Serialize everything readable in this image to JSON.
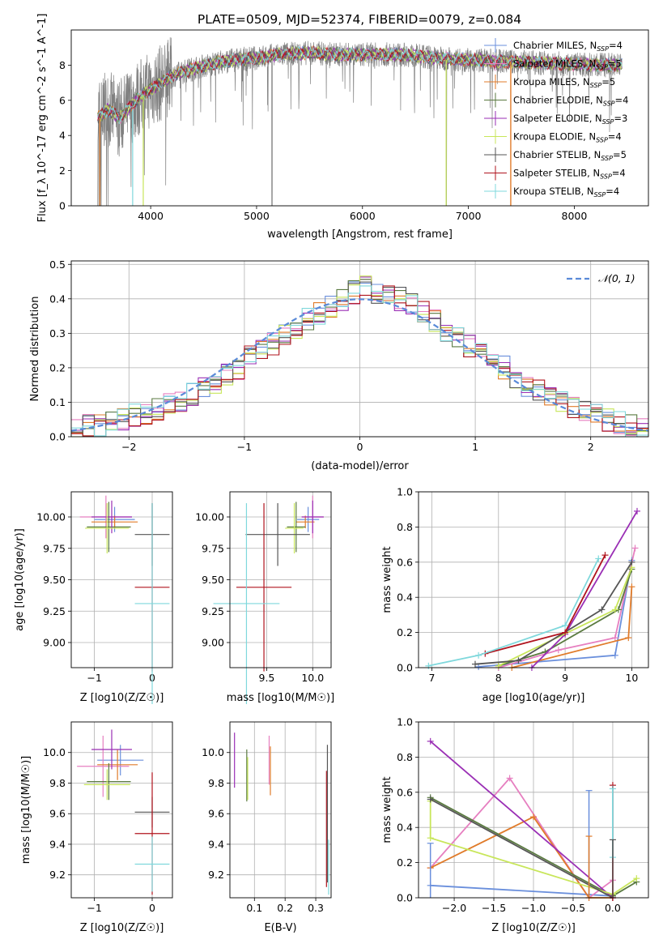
{
  "title": "PLATE=0509, MJD=52374, FIBERID=0079, z=0.084",
  "colors": {
    "chabrier_miles": "#6a8fdc",
    "salpeter_miles": "#e67fc0",
    "kroupa_miles": "#e07b2a",
    "chabrier_elodie": "#5a7a40",
    "salpeter_elodie": "#9a2fb5",
    "kroupa_elodie": "#c8e65a",
    "chabrier_stelib": "#555555",
    "salpeter_stelib": "#b0141e",
    "kroupa_stelib": "#7fd8dc",
    "data": "#808080",
    "normal": "#5a8ad8"
  },
  "chart_data": [
    {
      "id": "spectrum",
      "type": "line",
      "xlabel": "wavelength [Angstrom, rest frame]",
      "ylabel": "Flux [f_λ 10^-17 erg cm^-2 s^-1 A^-1]",
      "xlim": [
        3250,
        8700
      ],
      "ylim": [
        0,
        10
      ],
      "xticks": [
        4000,
        5000,
        6000,
        7000,
        8000
      ],
      "yticks": [
        0,
        2,
        4,
        6,
        8
      ],
      "grid": false,
      "legend_position": "right",
      "legend": [
        {
          "label": "Chabrier MILES, N_SSP=4",
          "color": "#6a8fdc"
        },
        {
          "label": "Salpeter MILES, N_SSP=5",
          "color": "#e67fc0"
        },
        {
          "label": "Kroupa MILES, N_SSP=5",
          "color": "#e07b2a"
        },
        {
          "label": "Chabrier ELODIE, N_SSP=4",
          "color": "#5a7a40"
        },
        {
          "label": "Salpeter ELODIE, N_SSP=3",
          "color": "#9a2fb5"
        },
        {
          "label": "Kroupa ELODIE, N_SSP=4",
          "color": "#c8e65a"
        },
        {
          "label": "Chabrier STELIB, N_SSP=5",
          "color": "#555555"
        },
        {
          "label": "Salpeter STELIB, N_SSP=4",
          "color": "#b0141e"
        },
        {
          "label": "Kroupa STELIB, N_SSP=4",
          "color": "#7fd8dc"
        }
      ],
      "continuum": {
        "x": [
          3500,
          3600,
          3700,
          3800,
          3900,
          4000,
          4100,
          4200,
          4400,
          4600,
          4800,
          5000,
          5200,
          5500,
          5800,
          6100,
          6400,
          6700,
          7000,
          7400,
          7800,
          8200,
          8450
        ],
        "y": [
          5.0,
          5.5,
          5.0,
          5.6,
          6.2,
          6.6,
          7.0,
          7.4,
          7.8,
          8.1,
          8.3,
          8.4,
          8.6,
          8.7,
          8.6,
          8.6,
          8.6,
          8.4,
          8.3,
          8.2,
          8.1,
          8.0,
          8.0
        ]
      }
    },
    {
      "id": "residuals",
      "type": "histogram",
      "xlabel": "(data-model)/error",
      "ylabel": "Normed distribution",
      "xlim": [
        -2.5,
        2.5
      ],
      "ylim": [
        0,
        0.51
      ],
      "xticks": [
        -2,
        -1,
        0,
        1,
        2
      ],
      "yticks": [
        0.0,
        0.1,
        0.2,
        0.3,
        0.4,
        0.5
      ],
      "grid": true,
      "legend_position": "top-right",
      "normal_label": "𝒩(0, 1)",
      "bin_edges_start": -2.5,
      "bin_width": 0.1,
      "base_series": [
        0.02,
        0.03,
        0.03,
        0.05,
        0.05,
        0.06,
        0.07,
        0.08,
        0.09,
        0.1,
        0.12,
        0.14,
        0.16,
        0.18,
        0.2,
        0.23,
        0.25,
        0.27,
        0.29,
        0.32,
        0.34,
        0.36,
        0.38,
        0.4,
        0.42,
        0.44,
        0.42,
        0.41,
        0.4,
        0.38,
        0.36,
        0.34,
        0.31,
        0.29,
        0.26,
        0.24,
        0.22,
        0.2,
        0.17,
        0.15,
        0.13,
        0.12,
        0.1,
        0.08,
        0.07,
        0.06,
        0.05,
        0.04,
        0.03,
        0.02
      ]
    },
    {
      "id": "age_vs_Z",
      "type": "errorbar",
      "xlabel": "Z [log10(Z/Z☉)]",
      "ylabel": "age [log10(age/yr)]",
      "xlim": [
        -1.4,
        0.35
      ],
      "ylim": [
        8.8,
        10.2
      ],
      "xticks": [
        -1,
        0
      ],
      "yticks": [
        9.0,
        9.25,
        9.5,
        9.75,
        10.0
      ],
      "grid": true,
      "points": [
        {
          "x": -0.65,
          "y": 9.98,
          "xerr": 0.35,
          "yerr": 0.1,
          "color": "#6a8fdc"
        },
        {
          "x": -0.8,
          "y": 10.0,
          "xerr": 0.45,
          "yerr": 0.17,
          "color": "#e67fc0"
        },
        {
          "x": -0.65,
          "y": 9.96,
          "xerr": 0.4,
          "yerr": 0.05,
          "color": "#e07b2a"
        },
        {
          "x": -0.75,
          "y": 9.92,
          "xerr": 0.38,
          "yerr": 0.2,
          "color": "#5a7a40"
        },
        {
          "x": -0.7,
          "y": 10.0,
          "xerr": 0.35,
          "yerr": 0.13,
          "color": "#9a2fb5"
        },
        {
          "x": -0.78,
          "y": 9.91,
          "xerr": 0.38,
          "yerr": 0.2,
          "color": "#c8e65a"
        },
        {
          "x": 0.0,
          "y": 9.86,
          "xerr": 0.3,
          "yerr": 0.25,
          "color": "#555555"
        },
        {
          "x": 0.0,
          "y": 9.44,
          "xerr": 0.3,
          "yerr": 0.67,
          "color": "#b0141e"
        },
        {
          "x": 0.0,
          "y": 9.31,
          "xerr": 0.3,
          "yerr": 0.8,
          "color": "#7fd8dc"
        }
      ]
    },
    {
      "id": "age_vs_mass",
      "type": "errorbar",
      "xlabel": "mass [log10(M/M☉)]",
      "ylabel": "",
      "xlim": [
        9.1,
        10.2
      ],
      "ylim": [
        8.8,
        10.2
      ],
      "xticks": [
        9.5,
        10.0
      ],
      "yticks": [
        9.0,
        9.25,
        9.5,
        9.75,
        10.0
      ],
      "grid": true,
      "points": [
        {
          "x": 9.95,
          "y": 9.98,
          "xerr": 0.12,
          "yerr": 0.1,
          "color": "#6a8fdc"
        },
        {
          "x": 10.0,
          "y": 10.0,
          "xerr": 0.12,
          "yerr": 0.17,
          "color": "#e67fc0"
        },
        {
          "x": 9.92,
          "y": 9.96,
          "xerr": 0.1,
          "yerr": 0.05,
          "color": "#e07b2a"
        },
        {
          "x": 9.82,
          "y": 9.92,
          "xerr": 0.1,
          "yerr": 0.2,
          "color": "#5a7a40"
        },
        {
          "x": 10.0,
          "y": 10.0,
          "xerr": 0.12,
          "yerr": 0.13,
          "color": "#9a2fb5"
        },
        {
          "x": 9.8,
          "y": 9.91,
          "xerr": 0.1,
          "yerr": 0.2,
          "color": "#c8e65a"
        },
        {
          "x": 9.62,
          "y": 9.86,
          "xerr": 0.35,
          "yerr": 0.25,
          "color": "#555555"
        },
        {
          "x": 9.47,
          "y": 9.44,
          "xerr": 0.3,
          "yerr": 0.67,
          "color": "#b0141e"
        },
        {
          "x": 9.28,
          "y": 9.31,
          "xerr": 0.36,
          "yerr": 0.8,
          "color": "#7fd8dc"
        }
      ]
    },
    {
      "id": "weight_vs_age",
      "type": "line",
      "xlabel": "age [log10(age/yr)]",
      "ylabel": "mass weight",
      "xlim": [
        6.8,
        10.25
      ],
      "ylim": [
        0,
        1.0
      ],
      "xticks": [
        7,
        8,
        9,
        10
      ],
      "yticks": [
        0.0,
        0.2,
        0.4,
        0.6,
        0.8,
        1.0
      ],
      "grid": true,
      "series": [
        {
          "color": "#6a8fdc",
          "x": [
            7.7,
            9.75,
            10.0
          ],
          "y": [
            0.005,
            0.07,
            0.61
          ]
        },
        {
          "color": "#e67fc0",
          "x": [
            8.0,
            8.9,
            9.75,
            10.05
          ],
          "y": [
            0.0,
            0.1,
            0.17,
            0.68
          ]
        },
        {
          "color": "#e07b2a",
          "x": [
            8.2,
            9.95,
            10.0
          ],
          "y": [
            0.0,
            0.17,
            0.46
          ]
        },
        {
          "color": "#5a7a40",
          "x": [
            8.0,
            8.7,
            9.8,
            10.0
          ],
          "y": [
            0.01,
            0.09,
            0.33,
            0.56
          ]
        },
        {
          "color": "#9a2fb5",
          "x": [
            8.5,
            9.0,
            10.08
          ],
          "y": [
            0.0,
            0.19,
            0.89
          ]
        },
        {
          "color": "#c8e65a",
          "x": [
            8.0,
            9.75,
            10.0
          ],
          "y": [
            0.01,
            0.33,
            0.57
          ]
        },
        {
          "color": "#555555",
          "x": [
            7.65,
            8.3,
            9.55,
            10.0
          ],
          "y": [
            0.02,
            0.04,
            0.33,
            0.6
          ]
        },
        {
          "color": "#b0141e",
          "x": [
            7.8,
            9.0,
            9.6
          ],
          "y": [
            0.08,
            0.2,
            0.64
          ]
        },
        {
          "color": "#7fd8dc",
          "x": [
            6.95,
            7.7,
            9.0,
            9.5
          ],
          "y": [
            0.01,
            0.07,
            0.24,
            0.62
          ]
        }
      ]
    },
    {
      "id": "mass_vs_Z",
      "type": "errorbar",
      "xlabel": "Z [log10(Z/Z☉)]",
      "ylabel": "mass [log10(M/M☉)]",
      "xlim": [
        -1.4,
        0.35
      ],
      "ylim": [
        9.05,
        10.2
      ],
      "xticks": [
        -1,
        0
      ],
      "yticks": [
        9.2,
        9.4,
        9.6,
        9.8,
        10.0
      ],
      "grid": true,
      "points": [
        {
          "x": -0.55,
          "y": 9.95,
          "xerr": 0.4,
          "yerr": 0.1,
          "color": "#6a8fdc"
        },
        {
          "x": -0.85,
          "y": 9.91,
          "xerr": 0.45,
          "yerr": 0.2,
          "color": "#e67fc0"
        },
        {
          "x": -0.6,
          "y": 9.92,
          "xerr": 0.35,
          "yerr": 0.1,
          "color": "#e07b2a"
        },
        {
          "x": -0.75,
          "y": 9.81,
          "xerr": 0.38,
          "yerr": 0.12,
          "color": "#5a7a40"
        },
        {
          "x": -0.7,
          "y": 10.02,
          "xerr": 0.35,
          "yerr": 0.13,
          "color": "#9a2fb5"
        },
        {
          "x": -0.78,
          "y": 9.79,
          "xerr": 0.4,
          "yerr": 0.1,
          "color": "#c8e65a"
        },
        {
          "x": 0.0,
          "y": 9.61,
          "xerr": 0.3,
          "yerr": 0.1,
          "color": "#555555"
        },
        {
          "x": 0.0,
          "y": 9.47,
          "xerr": 0.3,
          "yerr": 0.4,
          "color": "#b0141e"
        },
        {
          "x": 0.0,
          "y": 9.27,
          "xerr": 0.3,
          "yerr": 0.18,
          "color": "#7fd8dc"
        }
      ]
    },
    {
      "id": "mass_vs_ebv",
      "type": "errorbar",
      "xlabel": "E(B-V)",
      "ylabel": "",
      "xlim": [
        0.02,
        0.35
      ],
      "ylim": [
        9.05,
        10.2
      ],
      "xticks": [
        0.1,
        0.2,
        0.3
      ],
      "yticks": [
        9.2,
        9.4,
        9.6,
        9.8,
        10.0
      ],
      "grid": true,
      "points": [
        {
          "x": 0.035,
          "y": 9.95,
          "xerr": 0.0,
          "yerr": 0.18,
          "color": "#9a2fb5"
        },
        {
          "x": 0.075,
          "y": 9.85,
          "xerr": 0.0,
          "yerr": 0.17,
          "color": "#5a7a40"
        },
        {
          "x": 0.078,
          "y": 9.83,
          "xerr": 0.0,
          "yerr": 0.14,
          "color": "#c8e65a"
        },
        {
          "x": 0.148,
          "y": 9.95,
          "xerr": 0.0,
          "yerr": 0.16,
          "color": "#e67fc0"
        },
        {
          "x": 0.152,
          "y": 9.88,
          "xerr": 0.0,
          "yerr": 0.16,
          "color": "#e07b2a"
        },
        {
          "x": 0.335,
          "y": 9.5,
          "xerr": 0.0,
          "yerr": 0.38,
          "color": "#b0141e"
        },
        {
          "x": 0.338,
          "y": 9.6,
          "xerr": 0.0,
          "yerr": 0.45,
          "color": "#555555"
        },
        {
          "x": 0.342,
          "y": 9.25,
          "xerr": 0.0,
          "yerr": 0.18,
          "color": "#7fd8dc"
        }
      ]
    },
    {
      "id": "weight_vs_Z",
      "type": "line",
      "xlabel": "Z [log10(Z/Z☉)]",
      "ylabel": "mass weight",
      "xlim": [
        -2.45,
        0.45
      ],
      "ylim": [
        0,
        1.0
      ],
      "xticks": [
        -2.0,
        -1.5,
        -1.0,
        -0.5,
        0.0
      ],
      "yticks": [
        0.0,
        0.2,
        0.4,
        0.6,
        0.8,
        1.0
      ],
      "grid": true,
      "series": [
        {
          "color": "#6a8fdc",
          "x": [
            -2.3,
            0.0
          ],
          "y": [
            0.07,
            0.01
          ]
        },
        {
          "color": "#e67fc0",
          "x": [
            -2.3,
            -1.3,
            -0.3,
            0.0
          ],
          "y": [
            0.17,
            0.68,
            0.0,
            0.1
          ]
        },
        {
          "color": "#e07b2a",
          "x": [
            -2.3,
            -1.0,
            -0.3,
            0.0
          ],
          "y": [
            0.17,
            0.46,
            0.0,
            0.0
          ]
        },
        {
          "color": "#5a7a40",
          "x": [
            -2.3,
            0.0,
            0.3
          ],
          "y": [
            0.57,
            0.01,
            0.09
          ]
        },
        {
          "color": "#9a2fb5",
          "x": [
            -2.3,
            0.0
          ],
          "y": [
            0.89,
            0.0
          ]
        },
        {
          "color": "#c8e65a",
          "x": [
            -2.3,
            -2.3,
            0.0,
            0.3
          ],
          "y": [
            0.55,
            0.34,
            0.02,
            0.11
          ]
        },
        {
          "color": "#555555",
          "x": [
            -2.3,
            0.0
          ],
          "y": [
            0.56,
            0.0
          ]
        },
        {
          "color": "#b0141e",
          "x": [
            0.0,
            0.0
          ],
          "y": [
            0.64,
            0.0
          ]
        },
        {
          "color": "#7fd8dc",
          "x": [
            0.0,
            0.0
          ],
          "y": [
            0.62,
            0.23
          ]
        }
      ],
      "vlines": [
        {
          "x": -0.3,
          "y": 0.61,
          "color": "#6a8fdc"
        },
        {
          "x": -0.3,
          "y": 0.35,
          "color": "#e07b2a"
        },
        {
          "x": -2.3,
          "y": 0.31,
          "color": "#6a8fdc"
        },
        {
          "x": 0.0,
          "y": 0.33,
          "color": "#555555"
        }
      ]
    }
  ]
}
